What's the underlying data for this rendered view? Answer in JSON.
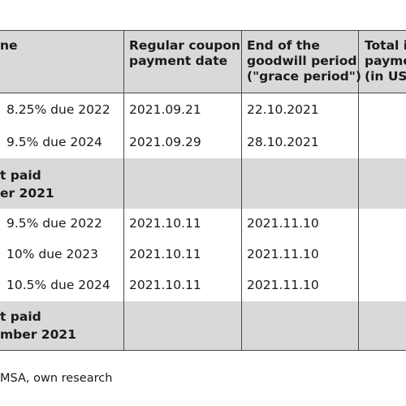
{
  "table": {
    "headers": {
      "name": "ne",
      "coupon_date": "Regular coupon\npayment date",
      "grace_end": "End of the\ngoodwill period\n(\"grace period\")",
      "total": "Total i\npaymen\n(in US$"
    },
    "rows": [
      {
        "bond": "8.25% due 2022",
        "coupon_date": "2021.09.21",
        "grace_end": "22.10.2021"
      },
      {
        "bond": "9.5% due 2024",
        "coupon_date": "2021.09.29",
        "grace_end": "28.10.2021"
      },
      {
        "bond": "10% due 2023",
        "coupon_date": "2021.10.11",
        "grace_end": "2021.11.10"
      },
      {
        "bond": "10.5% due 2024",
        "coupon_date": "2021.10.11",
        "grace_end": "2021.11.10"
      },
      {
        "bond": "9.5% due 2022",
        "coupon_date": "2021.10.11",
        "grace_end": "2021.11.10"
      }
    ],
    "group_1": {
      "line1": "t paid",
      "line2": "er 2021"
    },
    "group_2": {
      "line1": "t paid",
      "line2": "mber 2021"
    }
  },
  "source": "MSA, own research"
}
